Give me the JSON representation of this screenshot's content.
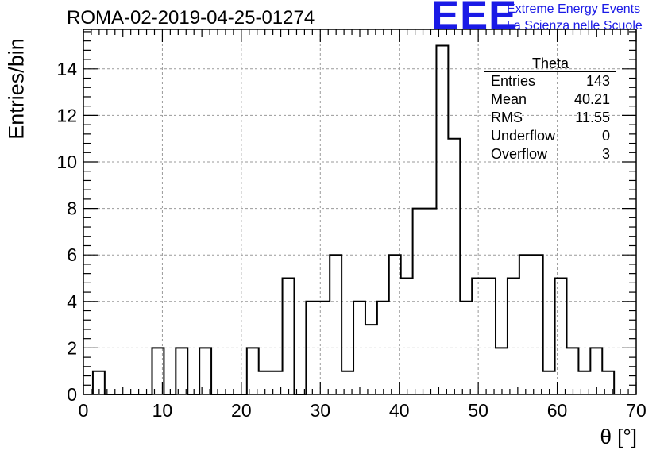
{
  "run_title": "ROMA-02-2019-04-25-01274",
  "logo": {
    "mark": "EEE",
    "line1": "Extreme Energy Events",
    "line2": "La Scienza nelle Scuole",
    "color": "#1a1ae6"
  },
  "stats": {
    "title": "Theta",
    "rows": [
      {
        "label": "Entries",
        "value": "143"
      },
      {
        "label": "Mean",
        "value": "40.21"
      },
      {
        "label": "RMS",
        "value": "11.55"
      },
      {
        "label": "Underflow",
        "value": "0"
      },
      {
        "label": "Overflow",
        "value": "3"
      }
    ]
  },
  "chart_data": {
    "type": "histogram",
    "xlabel": "θ [°]",
    "ylabel": "Entries/bin",
    "xlim": [
      0,
      70
    ],
    "ylim": [
      0,
      15.7
    ],
    "xticks": [
      0,
      10,
      20,
      30,
      40,
      50,
      60,
      70
    ],
    "yticks": [
      0,
      2,
      4,
      6,
      8,
      10,
      12,
      14
    ],
    "grid": true,
    "bin_edges_start": 1.2,
    "bin_width": 1.5,
    "values": [
      1,
      0,
      0,
      0,
      0,
      2,
      0,
      2,
      0,
      2,
      0,
      0,
      0,
      2,
      1,
      1,
      5,
      0,
      4,
      4,
      6,
      1,
      4,
      3,
      4,
      6,
      5,
      8,
      8,
      15,
      11,
      4,
      5,
      5,
      2,
      5,
      6,
      6,
      1,
      5,
      2,
      1,
      2,
      1
    ]
  }
}
